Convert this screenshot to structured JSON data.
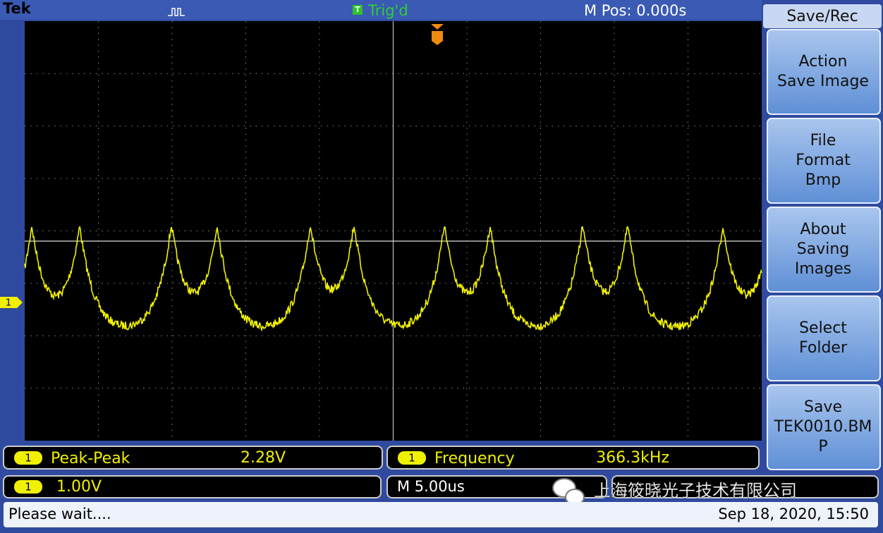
{
  "header": {
    "brand": "Tek",
    "trigger_badge": "T",
    "trigger_status": "Trig'd",
    "m_pos": "M Pos: 0.000s"
  },
  "menu": {
    "title": "Save/Rec",
    "buttons": [
      {
        "lines": [
          "Action",
          "Save Image"
        ]
      },
      {
        "lines": [
          "File",
          "Format",
          "Bmp"
        ]
      },
      {
        "lines": [
          "About",
          "Saving",
          "Images"
        ]
      },
      {
        "lines": [
          "Select",
          "Folder"
        ]
      },
      {
        "lines": [
          "Save",
          "TEK0010.BM",
          "P"
        ]
      }
    ]
  },
  "channel_marker": "1",
  "measurements": [
    {
      "channel": "1",
      "name": "Peak-Peak",
      "value": "2.28V"
    },
    {
      "channel": "1",
      "name": "Frequency",
      "value": "366.3kHz"
    }
  ],
  "status": {
    "channel": "1",
    "scale": "1.00V",
    "timebase": "M 5.00us",
    "watermark": "上海筱晓光子技术有限公司",
    "message": "Please wait....",
    "datetime": "Sep 18, 2020, 15:50"
  }
}
